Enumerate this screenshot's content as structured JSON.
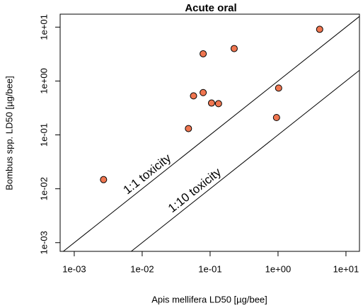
{
  "chart_data": {
    "type": "scatter",
    "title": "Acute oral",
    "x_label": "Apis mellifera LD50 [µg/bee]",
    "y_label": "Bombus spp. LD50 [µg/bee]",
    "log_x": true,
    "log_y": true,
    "xlim": [
      0.00062,
      15.8
    ],
    "ylim": [
      0.00069,
      17.4
    ],
    "xticks": [
      {
        "value": 0.001,
        "label": "1e-03"
      },
      {
        "value": 0.01,
        "label": "1e-02"
      },
      {
        "value": 0.1,
        "label": "1e-01"
      },
      {
        "value": 1,
        "label": "1e+00"
      },
      {
        "value": 10,
        "label": "1e+01"
      }
    ],
    "yticks": [
      {
        "value": 0.001,
        "label": "1e-03"
      },
      {
        "value": 0.01,
        "label": "1e-02"
      },
      {
        "value": 0.1,
        "label": "1e-01"
      },
      {
        "value": 1,
        "label": "1e+00"
      },
      {
        "value": 10,
        "label": "1e+01"
      }
    ],
    "color": "#f07650",
    "x": [
      0.0027,
      0.048,
      0.057,
      0.079,
      0.105,
      0.133,
      0.079,
      0.226,
      0.95,
      1.02,
      4.1
    ],
    "values": [
      0.0148,
      0.131,
      0.53,
      0.61,
      0.39,
      0.38,
      3.2,
      4.0,
      0.21,
      0.74,
      9.1
    ],
    "reference_lines": [
      {
        "label": "1:1 toxicity",
        "ratio": 1
      },
      {
        "label": "1:10 toxicity",
        "ratio": 0.1
      }
    ]
  }
}
